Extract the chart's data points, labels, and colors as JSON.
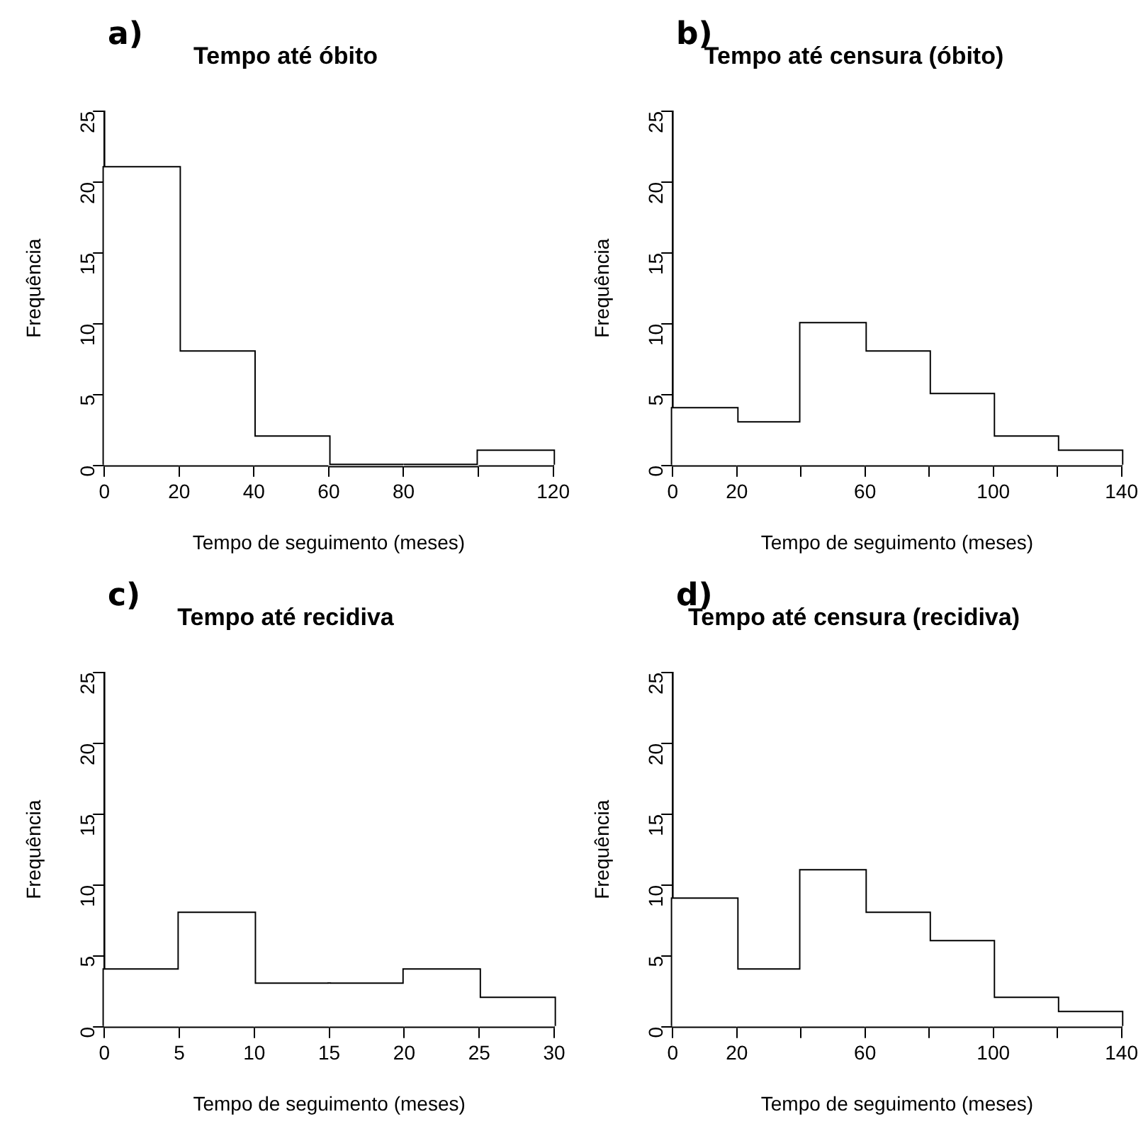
{
  "chart_data": [
    {
      "type": "histogram",
      "title": "Tempo até óbito",
      "xlabel": "Tempo de seguimento (meses)",
      "ylabel": "Frequência",
      "annotations": [
        "a)"
      ],
      "bins": [
        0,
        20,
        40,
        60,
        80,
        100,
        120
      ],
      "values": [
        21,
        8,
        2,
        0,
        0,
        1
      ],
      "color": "#ffffff",
      "xlim": [
        0,
        120
      ],
      "xticks": [
        0,
        20,
        40,
        60,
        80,
        {
          "value": 100,
          "label": null
        },
        120
      ],
      "ylim": [
        0,
        25
      ],
      "yticks": [
        0,
        5,
        10,
        15,
        20,
        25
      ],
      "grid": false,
      "legend": false
    },
    {
      "type": "histogram",
      "title": "Tempo até censura (óbito)",
      "xlabel": "Tempo de seguimento (meses)",
      "ylabel": "Frequência",
      "annotations": [
        "b)"
      ],
      "bins": [
        0,
        20,
        40,
        60,
        80,
        100,
        120,
        140
      ],
      "values": [
        4,
        3,
        10,
        8,
        5,
        2,
        1
      ],
      "color": "#ffffff",
      "xlim": [
        0,
        140
      ],
      "xticks": [
        0,
        20,
        {
          "value": 40,
          "label": null
        },
        60,
        {
          "value": 80,
          "label": null
        },
        100,
        {
          "value": 120,
          "label": null
        },
        140
      ],
      "ylim": [
        0,
        25
      ],
      "yticks": [
        0,
        5,
        10,
        15,
        20,
        25
      ],
      "grid": false,
      "legend": false
    },
    {
      "type": "histogram",
      "title": "Tempo até recidiva",
      "xlabel": "Tempo de seguimento (meses)",
      "ylabel": "Frequência",
      "annotations": [
        "c)"
      ],
      "bins": [
        0,
        5,
        10,
        15,
        20,
        25,
        30
      ],
      "values": [
        4,
        8,
        3,
        3,
        4,
        2
      ],
      "color": "#ffffff",
      "xlim": [
        0,
        30
      ],
      "xticks": [
        0,
        5,
        10,
        15,
        20,
        25,
        30
      ],
      "ylim": [
        0,
        25
      ],
      "yticks": [
        0,
        5,
        10,
        15,
        20,
        25
      ],
      "grid": false,
      "legend": false
    },
    {
      "type": "histogram",
      "title": "Tempo até censura (recidiva)",
      "xlabel": "Tempo de seguimento (meses)",
      "ylabel": "Frequência",
      "annotations": [
        "d)"
      ],
      "bins": [
        0,
        20,
        40,
        60,
        80,
        100,
        120,
        140
      ],
      "values": [
        9,
        4,
        11,
        8,
        6,
        2,
        1
      ],
      "color": "#ffffff",
      "xlim": [
        0,
        140
      ],
      "xticks": [
        0,
        20,
        {
          "value": 40,
          "label": null
        },
        60,
        {
          "value": 80,
          "label": null
        },
        100,
        {
          "value": 120,
          "label": null
        },
        140
      ],
      "ylim": [
        0,
        25
      ],
      "yticks": [
        0,
        5,
        10,
        15,
        20,
        25
      ],
      "grid": false,
      "legend": false
    }
  ]
}
